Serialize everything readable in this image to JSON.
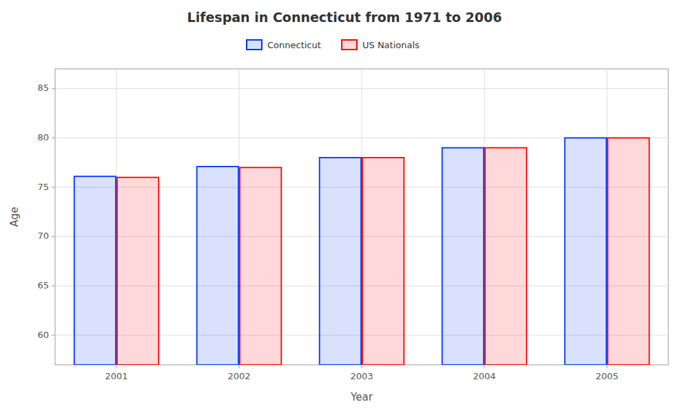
{
  "chart_data": {
    "type": "bar",
    "title": "Lifespan in Connecticut from 1971 to 2006",
    "x_label": "Year",
    "y_label": "Age",
    "categories": [
      "2001",
      "2002",
      "2003",
      "2004",
      "2005"
    ],
    "series": [
      {
        "name": "Connecticut",
        "color": "#0033ff",
        "values": [
          76.1,
          77.1,
          78.0,
          79.0,
          80.0
        ]
      },
      {
        "name": "US Nationals",
        "color": "#ff0000",
        "values": [
          76.0,
          77.0,
          78.0,
          79.0,
          80.0
        ]
      }
    ],
    "ylim": [
      57,
      87
    ],
    "yticks": [
      60,
      65,
      70,
      75,
      80,
      85
    ],
    "grid": true,
    "legend": "top"
  }
}
